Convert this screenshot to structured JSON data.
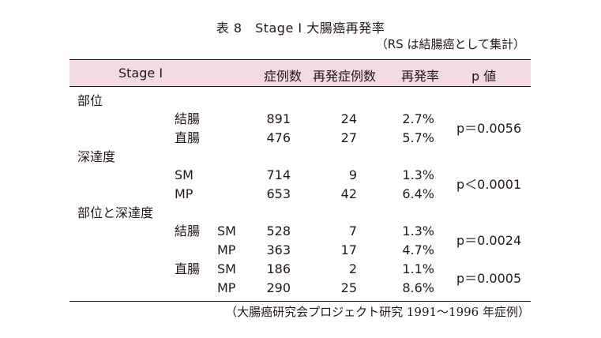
{
  "title": "表 8　Stage Ⅰ 大腸癌再発率",
  "subtitle": "（RS は結腸癌として集計）",
  "headers": {
    "stage": "Stage Ⅰ",
    "cases": "症例数",
    "recur_cases": "再発症例数",
    "recur_rate": "再発率",
    "pvalue": "p 値"
  },
  "sections": {
    "site": "部位",
    "depth": "深達度",
    "site_depth": "部位と深達度"
  },
  "rows": [
    {
      "label": "結腸",
      "sub": "",
      "cases": "891",
      "recur": "24",
      "rate": "2.7%"
    },
    {
      "label": "直腸",
      "sub": "",
      "cases": "476",
      "recur": "27",
      "rate": "5.7%"
    },
    {
      "label": "SM",
      "sub": "",
      "cases": "714",
      "recur": "9",
      "rate": "1.3%"
    },
    {
      "label": "MP",
      "sub": "",
      "cases": "653",
      "recur": "42",
      "rate": "6.4%"
    },
    {
      "label": "結腸",
      "sub": "SM",
      "cases": "528",
      "recur": "7",
      "rate": "1.3%"
    },
    {
      "label": "",
      "sub": "MP",
      "cases": "363",
      "recur": "17",
      "rate": "4.7%"
    },
    {
      "label": "直腸",
      "sub": "SM",
      "cases": "186",
      "recur": "2",
      "rate": "1.1%"
    },
    {
      "label": "",
      "sub": "MP",
      "cases": "290",
      "recur": "25",
      "rate": "8.6%"
    }
  ],
  "pvalues": [
    "p＝0.0056",
    "p＜0.0001",
    "p＝0.0024",
    "p＝0.0005"
  ],
  "footnote": "（大腸癌研究会プロジェクト研究 1991〜1996 年症例）",
  "colors": {
    "header_bg": "#f3dbe3",
    "text": "#231815"
  }
}
